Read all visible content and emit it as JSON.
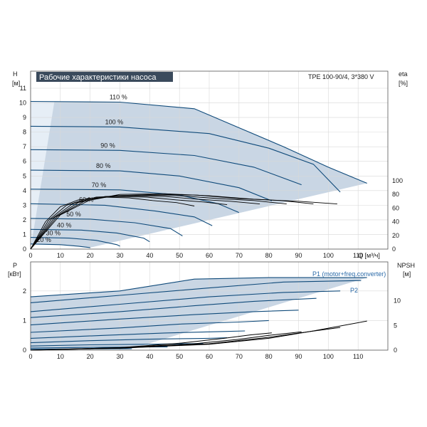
{
  "chart_data": {
    "title": "Рабочие характеристики насоса",
    "model": "TPE 100-90/4, 3*380 V",
    "colors": {
      "curve": "#0f4a7a",
      "area": "#c9d6e4",
      "area_light": "#e6eef6",
      "title_bg": "#3a4a5c",
      "eta": "#000000",
      "label_blue": "#2a6aa8"
    },
    "top": {
      "type": "line",
      "x_label": "Q [м³/ч]",
      "x_range": [
        0,
        120
      ],
      "x_ticks": [
        "0",
        "10",
        "20",
        "30",
        "40",
        "50",
        "60",
        "70",
        "80",
        "90",
        "100",
        "110"
      ],
      "y_left_label": "H",
      "y_left_unit": "[м]",
      "y_left_range": [
        0,
        11
      ],
      "y_left_ticks": [
        "0",
        "1",
        "2",
        "3",
        "4",
        "5",
        "6",
        "7",
        "8",
        "9",
        "10",
        "11"
      ],
      "y_right_label": "eta",
      "y_right_unit": "[%]",
      "y_right_range": [
        0,
        100
      ],
      "y_right_ticks": [
        "0",
        "20",
        "40",
        "60",
        "80",
        "100"
      ],
      "speed_curves": [
        {
          "label": "110 %",
          "points": [
            [
              0,
              10.1
            ],
            [
              30,
              10.05
            ],
            [
              55,
              9.6
            ],
            [
              70,
              8.3
            ],
            [
              85,
              7.0
            ],
            [
              100,
              5.6
            ],
            [
              113,
              4.5
            ]
          ]
        },
        {
          "label": "100 %",
          "points": [
            [
              0,
              8.4
            ],
            [
              30,
              8.35
            ],
            [
              60,
              7.9
            ],
            [
              80,
              6.9
            ],
            [
              95,
              5.8
            ],
            [
              104,
              3.9
            ]
          ]
        },
        {
          "label": "90 %",
          "points": [
            [
              0,
              6.8
            ],
            [
              30,
              6.75
            ],
            [
              55,
              6.4
            ],
            [
              75,
              5.6
            ],
            [
              91,
              4.4
            ]
          ]
        },
        {
          "label": "80 %",
          "points": [
            [
              0,
              5.4
            ],
            [
              30,
              5.35
            ],
            [
              50,
              5.0
            ],
            [
              70,
              4.2
            ],
            [
              81,
              3.3
            ]
          ]
        },
        {
          "label": "70 %",
          "points": [
            [
              0,
              4.1
            ],
            [
              30,
              4.05
            ],
            [
              50,
              3.7
            ],
            [
              63,
              3.1
            ],
            [
              70,
              2.5
            ]
          ]
        },
        {
          "label": "60 %",
          "points": [
            [
              0,
              3.1
            ],
            [
              25,
              3.0
            ],
            [
              42,
              2.6
            ],
            [
              55,
              2.2
            ],
            [
              61,
              1.6
            ]
          ]
        },
        {
          "label": "50 %",
          "points": [
            [
              0,
              2.1
            ],
            [
              20,
              2.05
            ],
            [
              35,
              1.8
            ],
            [
              47,
              1.4
            ],
            [
              51,
              0.9
            ]
          ]
        },
        {
          "label": "40 %",
          "points": [
            [
              0,
              1.35
            ],
            [
              17,
              1.3
            ],
            [
              29,
              1.1
            ],
            [
              38,
              0.75
            ],
            [
              40,
              0.5
            ]
          ]
        },
        {
          "label": "30 %",
          "points": [
            [
              0,
              0.8
            ],
            [
              13,
              0.75
            ],
            [
              22,
              0.6
            ],
            [
              29,
              0.3
            ],
            [
              30,
              0.2
            ]
          ]
        },
        {
          "label": "20 %",
          "points": [
            [
              0,
              0.35
            ],
            [
              10,
              0.3
            ],
            [
              16,
              0.2
            ],
            [
              20,
              0.1
            ]
          ]
        }
      ],
      "eta_curves": [
        {
          "points": [
            [
              0,
              0
            ],
            [
              10,
              50
            ],
            [
              20,
              72
            ],
            [
              30,
              80
            ],
            [
              45,
              81
            ],
            [
              60,
              78
            ],
            [
              75,
              73
            ],
            [
              90,
              70
            ],
            [
              103,
              66
            ]
          ]
        },
        {
          "points": [
            [
              0,
              0
            ],
            [
              9,
              48
            ],
            [
              18,
              70
            ],
            [
              28,
              78
            ],
            [
              42,
              80
            ],
            [
              56,
              79
            ],
            [
              70,
              74
            ],
            [
              84,
              71
            ],
            [
              95,
              66
            ]
          ]
        },
        {
          "points": [
            [
              0,
              0
            ],
            [
              8,
              46
            ],
            [
              16,
              68
            ],
            [
              25,
              77
            ],
            [
              38,
              79
            ],
            [
              50,
              78
            ],
            [
              63,
              74
            ],
            [
              75,
              71
            ],
            [
              86,
              66
            ]
          ]
        },
        {
          "points": [
            [
              0,
              0
            ],
            [
              7,
              44
            ],
            [
              14,
              66
            ],
            [
              22,
              76
            ],
            [
              33,
              78
            ],
            [
              45,
              77
            ],
            [
              56,
              73
            ],
            [
              67,
              70
            ],
            [
              77,
              66
            ]
          ]
        },
        {
          "points": [
            [
              0,
              0
            ],
            [
              6,
              42
            ],
            [
              12,
              64
            ],
            [
              19,
              74
            ],
            [
              29,
              77
            ],
            [
              39,
              76
            ],
            [
              49,
              72
            ],
            [
              58,
              69
            ],
            [
              66,
              65
            ]
          ]
        },
        {
          "points": [
            [
              0,
              0
            ],
            [
              5,
              40
            ],
            [
              10,
              62
            ],
            [
              16,
              72
            ],
            [
              25,
              76
            ],
            [
              33,
              75
            ],
            [
              41,
              71
            ],
            [
              49,
              68
            ],
            [
              55,
              63
            ]
          ]
        }
      ]
    },
    "bottom": {
      "type": "line",
      "y_left_label": "P",
      "y_left_unit": "[кВт]",
      "y_left_range": [
        0,
        2.5
      ],
      "y_left_ticks": [
        "0",
        "1",
        "2"
      ],
      "y_right_label": "NPSH",
      "y_right_unit": "[м]",
      "y_right_range": [
        0,
        15
      ],
      "y_right_ticks": [
        "0",
        "5",
        "10"
      ],
      "p1_label": "P1 (motor+freq.converter)",
      "p2_label": "P2",
      "power_curves": [
        {
          "points": [
            [
              0,
              1.8
            ],
            [
              30,
              2.0
            ],
            [
              55,
              2.4
            ],
            [
              80,
              2.45
            ],
            [
              113,
              2.45
            ]
          ]
        },
        {
          "points": [
            [
              0,
              1.6
            ],
            [
              30,
              1.85
            ],
            [
              60,
              2.1
            ],
            [
              85,
              2.3
            ],
            [
              111,
              2.35
            ]
          ]
        },
        {
          "points": [
            [
              0,
              1.3
            ],
            [
              30,
              1.55
            ],
            [
              60,
              1.8
            ],
            [
              85,
              1.95
            ],
            [
              104,
              2.0
            ]
          ]
        },
        {
          "points": [
            [
              0,
              1.1
            ],
            [
              30,
              1.3
            ],
            [
              55,
              1.5
            ],
            [
              75,
              1.65
            ],
            [
              96,
              1.75
            ]
          ]
        },
        {
          "points": [
            [
              0,
              0.85
            ],
            [
              30,
              1.05
            ],
            [
              55,
              1.2
            ],
            [
              75,
              1.3
            ],
            [
              90,
              1.35
            ]
          ]
        },
        {
          "points": [
            [
              0,
              0.6
            ],
            [
              30,
              0.75
            ],
            [
              50,
              0.88
            ],
            [
              70,
              0.95
            ],
            [
              80,
              1.0
            ]
          ]
        },
        {
          "points": [
            [
              0,
              0.4
            ],
            [
              25,
              0.5
            ],
            [
              45,
              0.58
            ],
            [
              65,
              0.63
            ],
            [
              72,
              0.65
            ]
          ]
        },
        {
          "points": [
            [
              0,
              0.25
            ],
            [
              20,
              0.32
            ],
            [
              40,
              0.37
            ],
            [
              60,
              0.4
            ],
            [
              66,
              0.42
            ]
          ]
        },
        {
          "points": [
            [
              0,
              0.14
            ],
            [
              20,
              0.18
            ],
            [
              40,
              0.2
            ],
            [
              55,
              0.22
            ],
            [
              58,
              0.22
            ]
          ]
        },
        {
          "points": [
            [
              0,
              0.07
            ],
            [
              15,
              0.09
            ],
            [
              30,
              0.1
            ],
            [
              42,
              0.11
            ],
            [
              46,
              0.11
            ]
          ]
        },
        {
          "points": [
            [
              0,
              0.03
            ],
            [
              15,
              0.04
            ],
            [
              28,
              0.045
            ],
            [
              34,
              0.05
            ]
          ]
        }
      ],
      "npsh_curves": [
        {
          "points": [
            [
              0,
              0
            ],
            [
              30,
              0.4
            ],
            [
              60,
              1.2
            ],
            [
              80,
              2.4
            ],
            [
              95,
              3.9
            ],
            [
              113,
              5.9
            ]
          ]
        },
        {
          "points": [
            [
              0,
              0
            ],
            [
              30,
              0.4
            ],
            [
              60,
              1.3
            ],
            [
              80,
              2.6
            ],
            [
              94,
              3.8
            ],
            [
              104,
              4.6
            ]
          ]
        },
        {
          "points": [
            [
              0,
              0
            ],
            [
              30,
              0.5
            ],
            [
              55,
              1.3
            ],
            [
              70,
              2.2
            ],
            [
              80,
              3.0
            ],
            [
              91,
              3.7
            ]
          ]
        },
        {
          "points": [
            [
              0,
              0
            ],
            [
              30,
              0.5
            ],
            [
              50,
              1.4
            ],
            [
              65,
              2.4
            ],
            [
              74,
              3.1
            ],
            [
              81,
              3.5
            ]
          ]
        }
      ]
    },
    "x_axis_label": "Q [м³/ч]"
  }
}
